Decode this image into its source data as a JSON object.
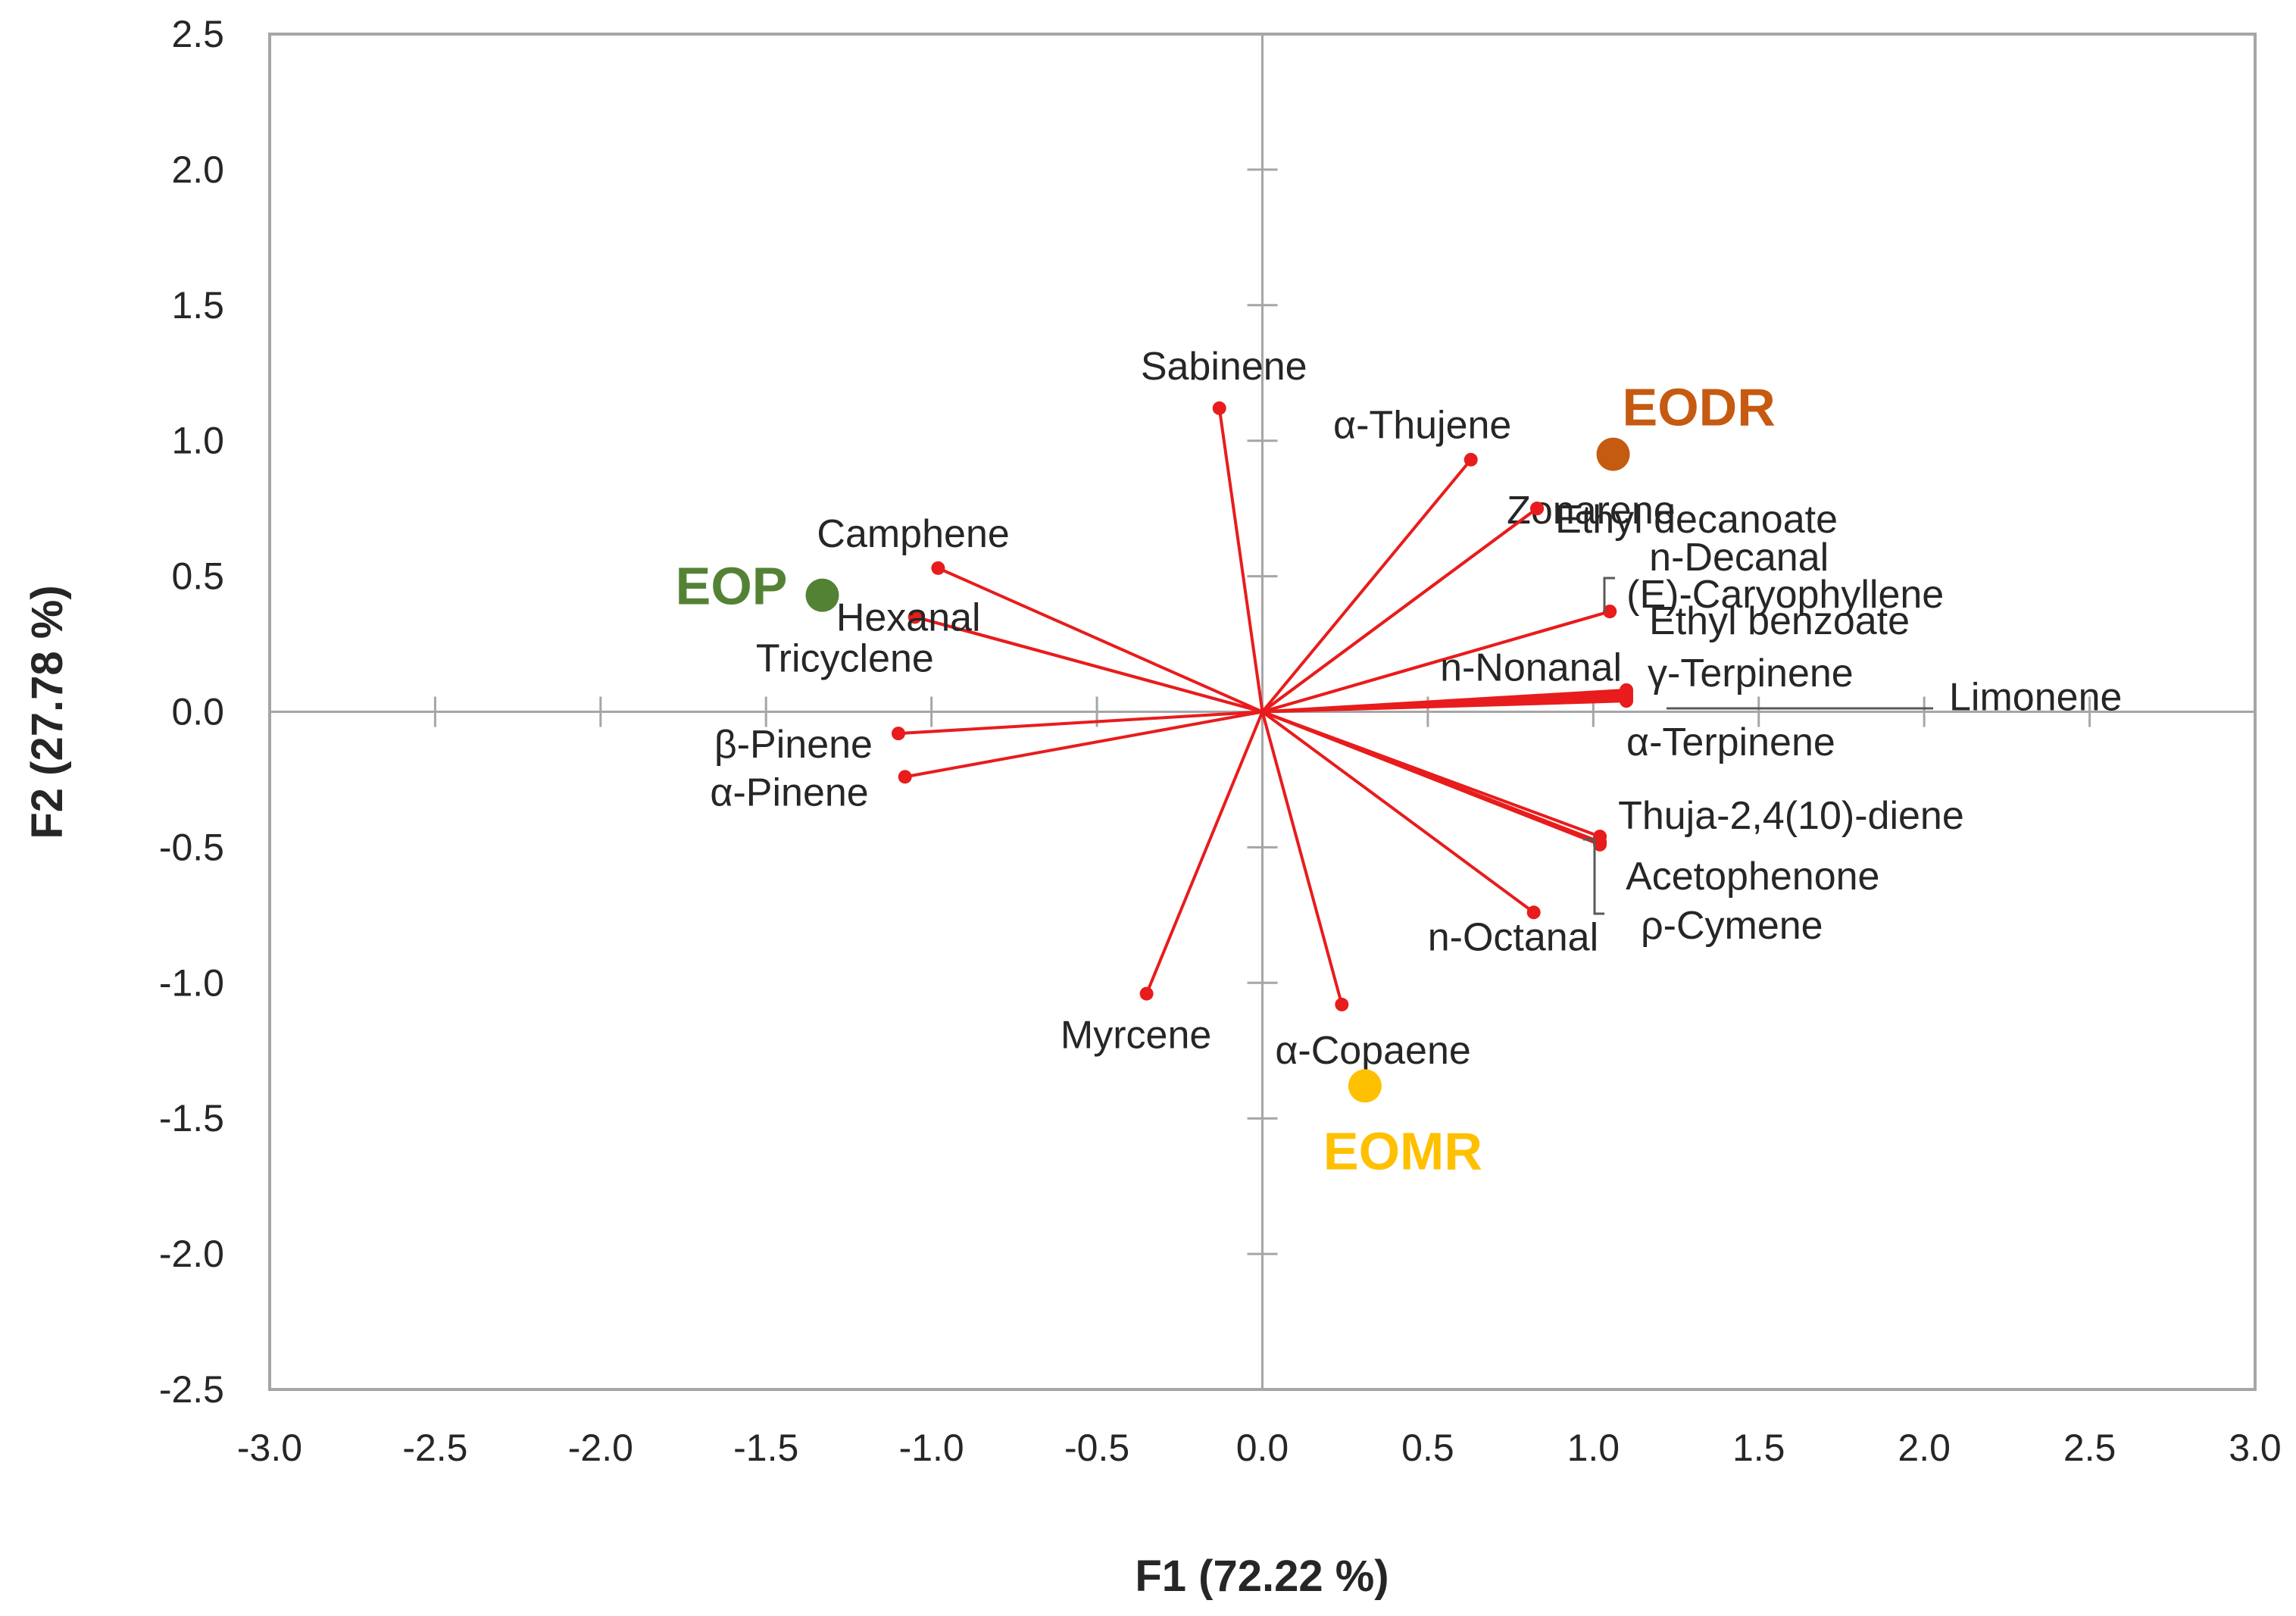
{
  "chart_data": {
    "type": "scatter",
    "subtype": "pca-biplot",
    "xlabel": "F1 (72.22 %)",
    "ylabel": "F2 (27.78 %)",
    "xlim": [
      -3.0,
      3.0
    ],
    "ylim": [
      -2.5,
      2.5
    ],
    "xticks": [
      -3.0,
      -2.5,
      -2.0,
      -1.5,
      -1.0,
      -0.5,
      0.0,
      0.5,
      1.0,
      1.5,
      2.0,
      2.5,
      3.0
    ],
    "yticks": [
      -2.5,
      -2.0,
      -1.5,
      -1.0,
      -0.5,
      0.0,
      0.5,
      1.0,
      1.5,
      2.0,
      2.5
    ],
    "xtick_labels": [
      "-3.0",
      "-2.5",
      "-2.0",
      "-1.5",
      "-1.0",
      "-0.5",
      "0.0",
      "0.5",
      "1.0",
      "1.5",
      "2.0",
      "2.5",
      "3.0"
    ],
    "ytick_labels": [
      "-2.5",
      "-2.0",
      "-1.5",
      "-1.0",
      "-0.5",
      "0.0",
      "0.5",
      "1.0",
      "1.5",
      "2.0",
      "2.5"
    ],
    "grid": false,
    "vector_color": "#e81c1c",
    "variables": [
      {
        "name": "Sabinene",
        "x": -0.13,
        "y": 1.12
      },
      {
        "name": "α-Thujene",
        "x": 0.63,
        "y": 0.93
      },
      {
        "name": "Zonarene",
        "x": 0.83,
        "y": 0.75
      },
      {
        "name": "Ethyl decanoate",
        "x": 0.83,
        "y": 0.75
      },
      {
        "name": "n-Decanal",
        "x": 1.05,
        "y": 0.37
      },
      {
        "name": "(E)-Caryophyllene",
        "x": 1.05,
        "y": 0.37
      },
      {
        "name": "Ethyl benzoate",
        "x": 1.1,
        "y": 0.08
      },
      {
        "name": "n-Nonanal",
        "x": 1.1,
        "y": 0.07
      },
      {
        "name": "γ-Terpinene",
        "x": 1.1,
        "y": 0.06
      },
      {
        "name": "Limonene",
        "x": 1.1,
        "y": 0.05
      },
      {
        "name": "α-Terpinene",
        "x": 1.1,
        "y": 0.04
      },
      {
        "name": "Thuja-2,4(10)-diene",
        "x": 1.02,
        "y": -0.46
      },
      {
        "name": "Acetophenone",
        "x": 1.02,
        "y": -0.48
      },
      {
        "name": "ρ-Cymene",
        "x": 1.02,
        "y": -0.49
      },
      {
        "name": "n-Octanal",
        "x": 0.82,
        "y": -0.74
      },
      {
        "name": "α-Copaene",
        "x": 0.24,
        "y": -1.08
      },
      {
        "name": "Myrcene",
        "x": -0.35,
        "y": -1.04
      },
      {
        "name": "α-Pinene",
        "x": -1.08,
        "y": -0.24
      },
      {
        "name": "β-Pinene",
        "x": -1.1,
        "y": -0.08
      },
      {
        "name": "Tricyclene",
        "x": -1.05,
        "y": 0.35
      },
      {
        "name": "Hexanal",
        "x": -1.05,
        "y": 0.35
      },
      {
        "name": "Camphene",
        "x": -0.98,
        "y": 0.53
      }
    ],
    "observations": [
      {
        "name": "EODR",
        "x": 1.06,
        "y": 0.95,
        "color": "#c55a11"
      },
      {
        "name": "EOP",
        "x": -1.33,
        "y": 0.43,
        "color": "#548235"
      },
      {
        "name": "EOMR",
        "x": 0.31,
        "y": -1.38,
        "color": "#ffc000"
      }
    ]
  }
}
